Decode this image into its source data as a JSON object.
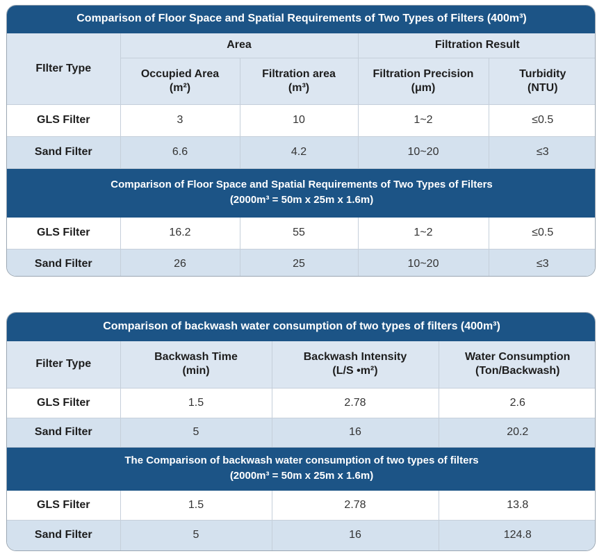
{
  "table1": {
    "title": "Comparison of Floor Space and Spatial Requirements of Two Types of Filters (400m³)",
    "header": {
      "filter_type": "FIlter Type",
      "area_group": "Area",
      "result_group": "Filtration Result",
      "occupied_area": "Occupied Area",
      "occupied_area_unit": "(m²)",
      "filtration_area": "Filtration area",
      "filtration_area_unit": "(m³)",
      "precision": "Filtration Precision",
      "precision_unit": "(μm)",
      "turbidity": "Turbidity",
      "turbidity_unit": "(NTU)"
    },
    "rows_400": [
      {
        "name": "GLS Filter",
        "occupied": "3",
        "filtration": "10",
        "precision": "1~2",
        "turbidity": "≤0.5"
      },
      {
        "name": "Sand Filter",
        "occupied": "6.6",
        "filtration": "4.2",
        "precision": "10~20",
        "turbidity": "≤3"
      }
    ],
    "subtitle_line1": "Comparison of Floor Space and Spatial Requirements of Two Types of Filters",
    "subtitle_line2": "(2000m³ = 50m x 25m x 1.6m)",
    "rows_2000": [
      {
        "name": "GLS Filter",
        "occupied": "16.2",
        "filtration": "55",
        "precision": "1~2",
        "turbidity": "≤0.5"
      },
      {
        "name": "Sand Filter",
        "occupied": "26",
        "filtration": "25",
        "precision": "10~20",
        "turbidity": "≤3"
      }
    ]
  },
  "table2": {
    "title": "Comparison of backwash water consumption of two types of filters (400m³)",
    "header": {
      "filter_type": "Filter Type",
      "time": "Backwash Time",
      "time_unit": "(min)",
      "intensity": "Backwash Intensity",
      "intensity_unit": "(L/S •m²)",
      "consumption": "Water Consumption",
      "consumption_unit": "(Ton/Backwash)"
    },
    "rows_400": [
      {
        "name": "GLS Filter",
        "time": "1.5",
        "intensity": "2.78",
        "consumption": "2.6"
      },
      {
        "name": "Sand Filter",
        "time": "5",
        "intensity": "16",
        "consumption": "20.2"
      }
    ],
    "subtitle_line1": "The Comparison of backwash water consumption of two types of filters",
    "subtitle_line2": "(2000m³ = 50m x 25m x 1.6m)",
    "rows_2000": [
      {
        "name": "GLS Filter",
        "time": "1.5",
        "intensity": "2.78",
        "consumption": "13.8"
      },
      {
        "name": "Sand Filter",
        "time": "5",
        "intensity": "16",
        "consumption": "124.8"
      }
    ]
  }
}
